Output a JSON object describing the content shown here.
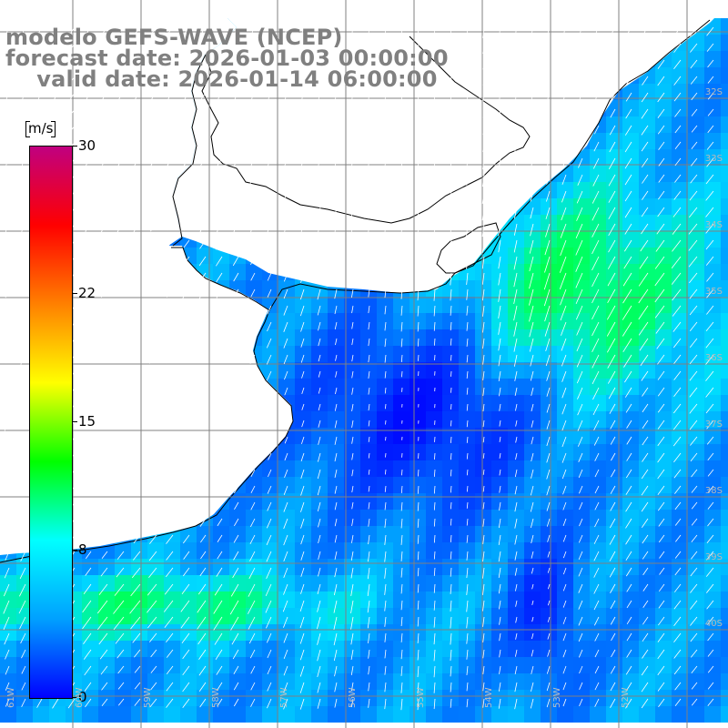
{
  "title": {
    "line1": "modelo GEFS-WAVE (NCEP)",
    "line2": "forecast date: 2026-01-03 00:00:00",
    "line3": "    valid date: 2026-01-14 06:00:00"
  },
  "colorbar": {
    "unit": "m/s",
    "min": 0,
    "max": 30,
    "ticks": [
      "30",
      "22",
      "15",
      "8",
      "0"
    ],
    "tick_values": [
      30,
      22,
      15,
      8,
      0
    ],
    "colors": [
      "#0000ff",
      "#00a0ff",
      "#00ffff",
      "#00ff00",
      "#ffff00",
      "#ff8000",
      "#ff0000",
      "#c00080"
    ]
  },
  "map": {
    "land_color": "#ffffff",
    "coast_color": "#000000",
    "grid_color": "#808080",
    "arrow_color": "#ffffff",
    "lat_labels": [
      "32S",
      "33S",
      "34S",
      "35S",
      "36S",
      "37S",
      "38S",
      "39S",
      "40S"
    ],
    "lon_labels": [
      "61W",
      "60W",
      "59W",
      "58W",
      "57W",
      "56W",
      "55W",
      "54W",
      "53W",
      "52W"
    ]
  }
}
